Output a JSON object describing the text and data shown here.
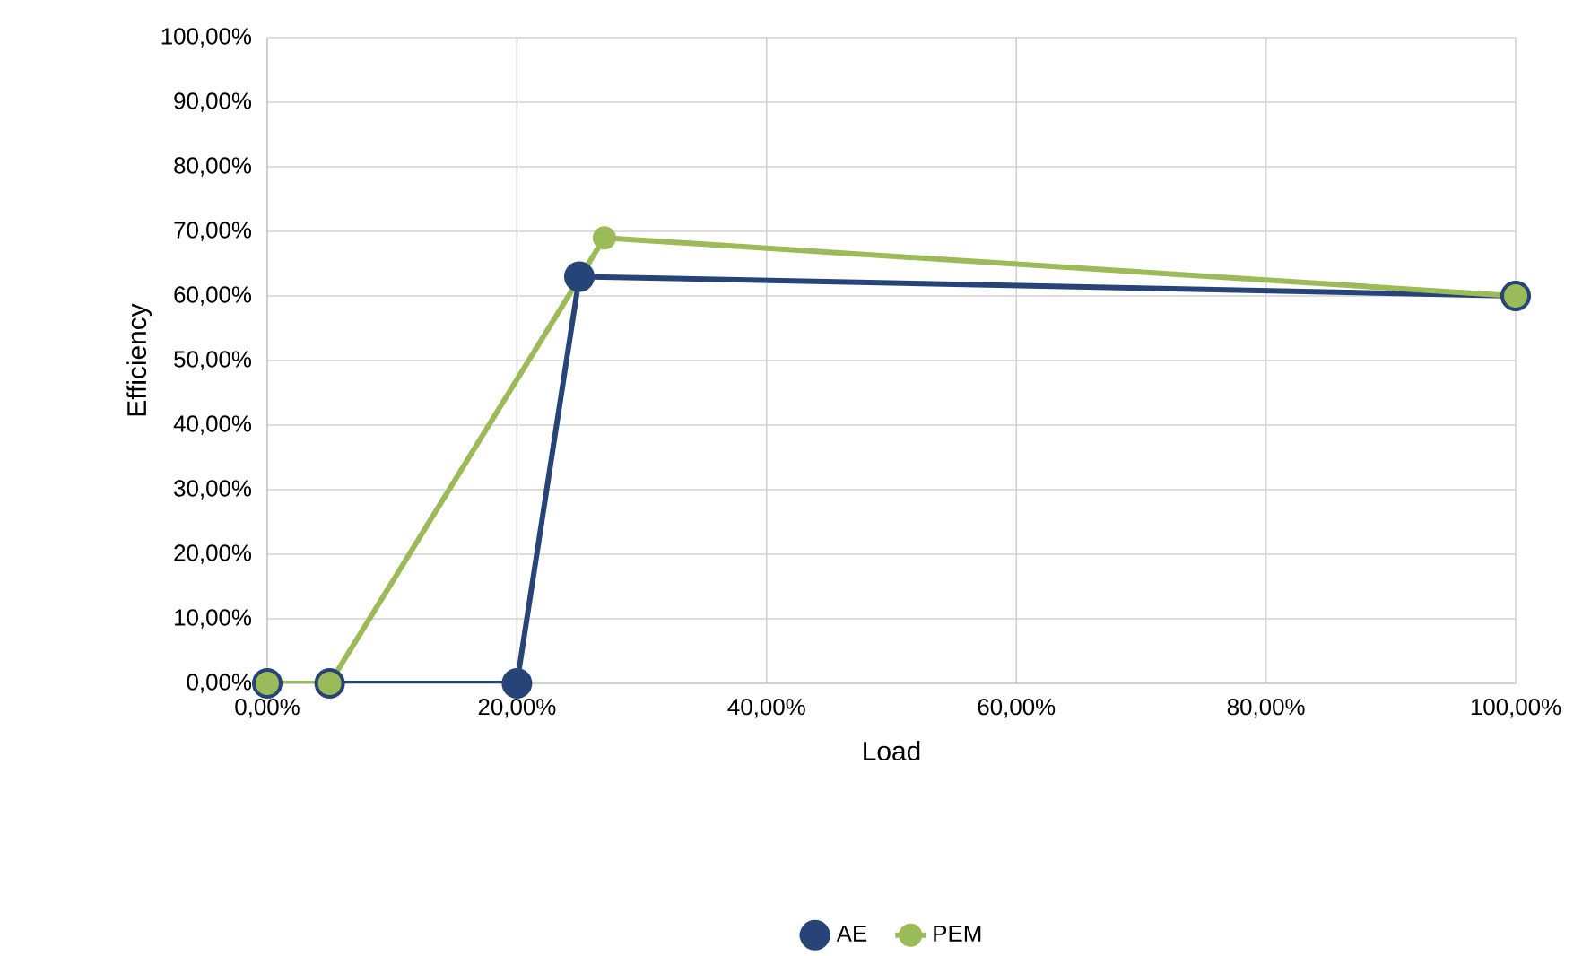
{
  "chart_data": {
    "type": "line",
    "xlabel": "Load",
    "ylabel": "Efficiency",
    "xlim": [
      0,
      100
    ],
    "ylim": [
      0,
      100
    ],
    "xticks": [
      {
        "value": 0,
        "label": "0,00%"
      },
      {
        "value": 20,
        "label": "20,00%"
      },
      {
        "value": 40,
        "label": "40,00%"
      },
      {
        "value": 60,
        "label": "60,00%"
      },
      {
        "value": 80,
        "label": "80,00%"
      },
      {
        "value": 100,
        "label": "100,00%"
      }
    ],
    "yticks": [
      {
        "value": 0,
        "label": "0,00%"
      },
      {
        "value": 10,
        "label": "10,00%"
      },
      {
        "value": 20,
        "label": "20,00%"
      },
      {
        "value": 30,
        "label": "30,00%"
      },
      {
        "value": 40,
        "label": "40,00%"
      },
      {
        "value": 50,
        "label": "50,00%"
      },
      {
        "value": 60,
        "label": "60,00%"
      },
      {
        "value": 70,
        "label": "70,00%"
      },
      {
        "value": 80,
        "label": "80,00%"
      },
      {
        "value": 90,
        "label": "90,00%"
      },
      {
        "value": 100,
        "label": "100,00%"
      }
    ],
    "series": [
      {
        "name": "AE",
        "color": "#264478",
        "x": [
          0,
          5,
          20,
          25,
          100
        ],
        "values": [
          0,
          0,
          0,
          63,
          60
        ]
      },
      {
        "name": "PEM",
        "color": "#9bbb59",
        "x": [
          0,
          5,
          27,
          100
        ],
        "values": [
          0,
          0,
          69,
          60
        ]
      }
    ],
    "grid": true,
    "legend": "bottom",
    "marker": "circle",
    "line_style": "solid"
  }
}
